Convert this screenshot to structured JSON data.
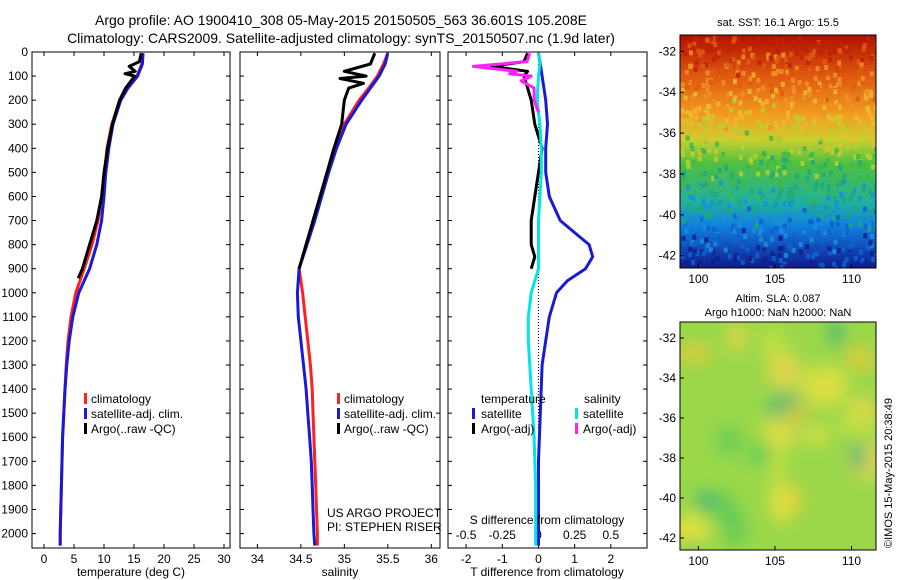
{
  "header": {
    "title_line1": "Argo profile: AO 1900410_308 05-May-2015 20150505_563 36.601S 105.208E",
    "title_line2": "Climatology: CARS2009. Satellite-adjusted climatology: synTS_20150507.nc (1.9d later)"
  },
  "colors": {
    "climatology": "#ff2020",
    "satellite": "#1a1ad6",
    "argo": "#000000",
    "sat_salinity": "#00e5e5",
    "argo_salinity": "#ff20ff"
  },
  "chart_data": [
    {
      "type": "line",
      "name": "temperature",
      "xlabel": "temperature (deg C)",
      "ylabel": "",
      "xlim": [
        -2,
        31
      ],
      "ylim": [
        2060,
        0
      ],
      "xticks": [
        "0",
        "5",
        "10",
        "15",
        "20",
        "25",
        "30"
      ],
      "xtick_values": [
        0,
        5,
        10,
        15,
        20,
        25,
        30
      ],
      "yticks": [
        "0",
        "100",
        "200",
        "300",
        "400",
        "500",
        "600",
        "700",
        "800",
        "900",
        "1000",
        "1100",
        "1200",
        "1300",
        "1400",
        "1500",
        "1600",
        "1700",
        "1800",
        "1900",
        "2000"
      ],
      "ytick_values": [
        0,
        100,
        200,
        300,
        400,
        500,
        600,
        700,
        800,
        900,
        1000,
        1100,
        1200,
        1300,
        1400,
        1500,
        1600,
        1700,
        1800,
        1900,
        2000
      ],
      "legend": [
        "climatology",
        "satellite-adj. clim.",
        "Argo(..raw -QC)"
      ],
      "series": [
        {
          "name": "climatology",
          "depth": [
            5,
            50,
            100,
            150,
            200,
            300,
            400,
            500,
            600,
            700,
            800,
            900,
            1000,
            1100,
            1200,
            1300,
            1400,
            1500,
            1600,
            1700,
            1800,
            1900,
            2000,
            2050
          ],
          "values": [
            16.5,
            16.3,
            15.5,
            13.8,
            12.6,
            11.3,
            10.5,
            10.1,
            9.7,
            9.0,
            8.0,
            6.7,
            5.3,
            4.5,
            4.0,
            3.7,
            3.5,
            3.3,
            3.1,
            3.0,
            2.9,
            2.8,
            2.7,
            2.7
          ]
        },
        {
          "name": "satellite-adj. clim.",
          "depth": [
            5,
            50,
            100,
            150,
            200,
            300,
            400,
            500,
            600,
            700,
            800,
            900,
            1000,
            1100,
            1200,
            1300,
            1400,
            1500,
            1600,
            1700,
            1800,
            1900,
            2000,
            2050
          ],
          "values": [
            16.5,
            16.4,
            15.6,
            14.0,
            12.8,
            11.5,
            10.8,
            10.3,
            10.0,
            9.6,
            8.8,
            7.6,
            5.8,
            4.8,
            4.2,
            3.8,
            3.5,
            3.3,
            3.1,
            3.0,
            2.9,
            2.8,
            2.7,
            2.7
          ]
        },
        {
          "name": "Argo(..raw -QC)",
          "depth": [
            5,
            40,
            60,
            80,
            90,
            100,
            150,
            200,
            300,
            400,
            500,
            600,
            700,
            800,
            850,
            900,
            940
          ],
          "values": [
            16.2,
            15.9,
            14.2,
            15.2,
            13.5,
            15.1,
            13.6,
            12.6,
            11.4,
            10.6,
            10.0,
            9.6,
            8.8,
            7.6,
            7.0,
            6.4,
            5.7
          ]
        }
      ]
    },
    {
      "type": "line",
      "name": "salinity",
      "xlabel": "salinity",
      "ylabel": "",
      "xlim": [
        33.8,
        36.1
      ],
      "ylim": [
        2060,
        0
      ],
      "xticks": [
        "34",
        "34.5",
        "35",
        "35.5",
        "36"
      ],
      "xtick_values": [
        34,
        34.5,
        35,
        35.5,
        36
      ],
      "legend": [
        "climatology",
        "satellite-adj. clim.",
        "Argo(..raw -QC)"
      ],
      "annotations": [
        "US ARGO PROJECT",
        "PI: STEPHEN RISER"
      ],
      "series": [
        {
          "name": "climatology",
          "depth": [
            5,
            50,
            100,
            150,
            200,
            300,
            400,
            500,
            600,
            700,
            800,
            900,
            1000,
            1100,
            1200,
            1300,
            1400,
            1500,
            1600,
            1700,
            1800,
            1900,
            2000,
            2050
          ],
          "values": [
            35.5,
            35.45,
            35.38,
            35.28,
            35.17,
            35.0,
            34.89,
            34.81,
            34.73,
            34.65,
            34.56,
            34.48,
            34.52,
            34.55,
            34.58,
            34.61,
            34.63,
            34.64,
            34.65,
            34.66,
            34.67,
            34.68,
            34.69,
            34.69
          ]
        },
        {
          "name": "satellite-adj. clim.",
          "depth": [
            5,
            50,
            100,
            150,
            200,
            300,
            400,
            500,
            600,
            700,
            800,
            900,
            1000,
            1100,
            1200,
            1300,
            1400,
            1500,
            1600,
            1700,
            1800,
            1900,
            2000,
            2050
          ],
          "values": [
            35.5,
            35.47,
            35.4,
            35.3,
            35.2,
            35.02,
            34.91,
            34.82,
            34.74,
            34.66,
            34.57,
            34.48,
            34.46,
            34.47,
            34.5,
            34.53,
            34.56,
            34.58,
            34.6,
            34.62,
            34.63,
            34.64,
            34.65,
            34.66
          ]
        },
        {
          "name": "Argo(..raw -QC)",
          "depth": [
            5,
            50,
            80,
            100,
            110,
            130,
            150,
            200,
            300,
            400,
            500,
            600,
            700,
            800,
            900
          ],
          "values": [
            35.35,
            35.3,
            35.0,
            35.25,
            34.95,
            35.22,
            35.05,
            35.0,
            34.97,
            34.88,
            34.8,
            34.72,
            34.64,
            34.56,
            34.48
          ]
        }
      ]
    },
    {
      "type": "line",
      "name": "difference",
      "xlabel": "T difference from climatology",
      "xlabel2": "S difference from climatology",
      "xlim": [
        -2.5,
        3.0
      ],
      "ylim": [
        2060,
        0
      ],
      "xticks": [
        "-2",
        "-1",
        "0",
        "1",
        "2"
      ],
      "xtick_values": [
        -2,
        -1,
        0,
        1,
        2
      ],
      "xticks_top": [
        "-0.5",
        "-0.25",
        "0",
        "0.25",
        "0.5"
      ],
      "xtick_top_values": [
        -0.5,
        -0.25,
        0,
        0.25,
        0.5
      ],
      "legend_headers": [
        "temperature",
        "salinity"
      ],
      "legend": [
        "satellite",
        "Argo(-adj)",
        "satellite",
        "Argo(-adj)"
      ],
      "series": [
        {
          "name": "temperature satellite",
          "depth": [
            5,
            50,
            100,
            150,
            200,
            300,
            400,
            500,
            600,
            700,
            750,
            800,
            850,
            900,
            950,
            1000,
            1100,
            1200,
            1300,
            1500,
            1700,
            1900,
            2050
          ],
          "values": [
            0.0,
            0.05,
            0.1,
            0.15,
            0.2,
            0.25,
            0.2,
            0.2,
            0.3,
            0.6,
            1.0,
            1.4,
            1.5,
            1.3,
            0.8,
            0.5,
            0.3,
            0.2,
            0.1,
            0.05,
            0.0,
            0.0,
            0.0
          ]
        },
        {
          "name": "temperature Argo(-adj)",
          "depth": [
            5,
            40,
            60,
            80,
            100,
            150,
            200,
            300,
            400,
            500,
            600,
            700,
            800,
            850,
            900
          ],
          "values": [
            -0.3,
            -0.4,
            -1.3,
            -0.3,
            -0.4,
            -0.3,
            -0.2,
            -0.1,
            0.1,
            0.0,
            -0.1,
            -0.2,
            -0.2,
            -0.1,
            -0.2
          ]
        },
        {
          "name": "salinity satellite",
          "depth": [
            5,
            50,
            100,
            200,
            300,
            400,
            500,
            600,
            700,
            800,
            900,
            1000,
            1100,
            1200,
            1400,
            1600,
            1800,
            2050
          ],
          "values": [
            0.0,
            0.01,
            0.0,
            -0.01,
            0.01,
            0.02,
            0.02,
            0.01,
            0.0,
            0.0,
            0.0,
            -0.05,
            -0.07,
            -0.07,
            -0.05,
            -0.03,
            -0.02,
            -0.02
          ]
        },
        {
          "name": "salinity Argo(-adj)",
          "depth": [
            5,
            40,
            60,
            80,
            90,
            100,
            120,
            150,
            200,
            250
          ],
          "values": [
            -0.06,
            -0.08,
            -0.45,
            -0.15,
            -0.2,
            -0.05,
            -0.12,
            -0.03,
            -0.03,
            0.0
          ]
        }
      ]
    }
  ],
  "maps": {
    "sst": {
      "title": "sat. SST: 16.1  Argo: 15.5",
      "xticks": [
        "100",
        "105",
        "110"
      ],
      "yticks": [
        "-32",
        "-34",
        "-36",
        "-38",
        "-40",
        "-42"
      ]
    },
    "sla": {
      "title_line1": "Altim. SLA: 0.087",
      "title_line2": "Argo h1000: NaN h2000: NaN",
      "xticks": [
        "100",
        "105",
        "110"
      ],
      "yticks": [
        "-32",
        "-34",
        "-36",
        "-38",
        "-40",
        "-42"
      ]
    }
  },
  "footer": {
    "stamp": "©IMOS 15-May-2015 20:38:49"
  }
}
